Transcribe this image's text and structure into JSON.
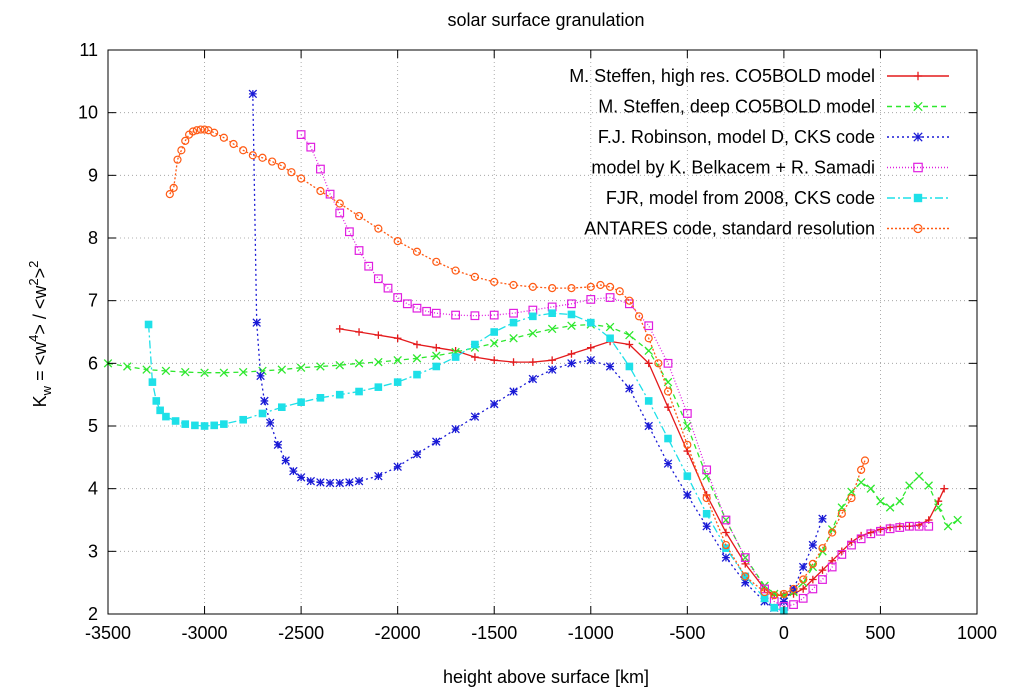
{
  "chart_data": {
    "type": "scatter",
    "title": "solar surface granulation",
    "xlabel": "height above surface [km]",
    "ylabel": {
      "base": "K",
      "sub": "w",
      "eq": " = <w",
      "sup1": "4",
      "mid": "> / <w",
      "sup2": "2",
      "mid2": ">",
      "sup3": "2"
    },
    "xlim": [
      -3500,
      1000
    ],
    "ylim": [
      2,
      11
    ],
    "xticks": [
      -3500,
      -3000,
      -2500,
      -2000,
      -1500,
      -1000,
      -500,
      0,
      500,
      1000
    ],
    "yticks": [
      2,
      3,
      4,
      5,
      6,
      7,
      8,
      9,
      10,
      11
    ],
    "xtick_labels": [
      "-3500",
      "-3000",
      "-2500",
      "-2000",
      "-1500",
      "-1000",
      "-500",
      "0",
      "500",
      "1000"
    ],
    "ytick_labels": [
      "2",
      "3",
      "4",
      "5",
      "6",
      "7",
      "8",
      "9",
      "10",
      "11"
    ],
    "grid": true,
    "legend_position": "top-right",
    "series": [
      {
        "name": "M. Steffen, high res. CO5BOLD model",
        "color": "#e41a1c",
        "marker": "plus",
        "dash": "",
        "x": [
          -2300,
          -2200,
          -2100,
          -2000,
          -1900,
          -1800,
          -1700,
          -1600,
          -1500,
          -1400,
          -1300,
          -1200,
          -1100,
          -1000,
          -900,
          -800,
          -700,
          -600,
          -500,
          -400,
          -300,
          -200,
          -100,
          -50,
          0,
          50,
          100,
          150,
          200,
          250,
          300,
          350,
          400,
          450,
          500,
          550,
          600,
          650,
          700,
          750,
          800,
          830
        ],
        "y": [
          6.55,
          6.5,
          6.45,
          6.4,
          6.3,
          6.25,
          6.2,
          6.1,
          6.05,
          6.02,
          6.02,
          6.05,
          6.15,
          6.25,
          6.35,
          6.3,
          6.0,
          5.3,
          4.6,
          3.9,
          3.3,
          2.8,
          2.4,
          2.3,
          2.3,
          2.32,
          2.4,
          2.55,
          2.7,
          2.85,
          3.0,
          3.15,
          3.25,
          3.3,
          3.35,
          3.38,
          3.4,
          3.4,
          3.42,
          3.5,
          3.8,
          4.0
        ]
      },
      {
        "name": "M. Steffen, deep CO5BOLD model",
        "color": "#2ee82e",
        "marker": "cross",
        "dash": "5,4",
        "x": [
          -3500,
          -3400,
          -3300,
          -3200,
          -3100,
          -3000,
          -2900,
          -2800,
          -2700,
          -2600,
          -2500,
          -2400,
          -2300,
          -2200,
          -2100,
          -2000,
          -1900,
          -1800,
          -1700,
          -1600,
          -1500,
          -1400,
          -1300,
          -1200,
          -1100,
          -1000,
          -900,
          -800,
          -700,
          -600,
          -500,
          -400,
          -300,
          -200,
          -100,
          -50,
          0,
          50,
          100,
          150,
          200,
          250,
          300,
          350,
          400,
          450,
          500,
          550,
          600,
          650,
          700,
          750,
          800,
          850,
          900
        ],
        "y": [
          6.0,
          5.95,
          5.9,
          5.88,
          5.86,
          5.85,
          5.85,
          5.86,
          5.88,
          5.9,
          5.93,
          5.95,
          5.97,
          6.0,
          6.02,
          6.05,
          6.08,
          6.12,
          6.18,
          6.25,
          6.32,
          6.4,
          6.48,
          6.55,
          6.6,
          6.62,
          6.58,
          6.45,
          6.2,
          5.7,
          5.0,
          4.2,
          3.5,
          2.9,
          2.45,
          2.32,
          2.3,
          2.35,
          2.5,
          2.75,
          3.0,
          3.35,
          3.7,
          3.95,
          4.1,
          4.0,
          3.8,
          3.7,
          3.8,
          4.05,
          4.2,
          4.05,
          3.7,
          3.4,
          3.5
        ]
      },
      {
        "name": "F.J. Robinson, model D, CKS code",
        "color": "#1a1ad6",
        "marker": "star",
        "dash": "2,3",
        "x": [
          -2750,
          -2730,
          -2710,
          -2690,
          -2660,
          -2620,
          -2580,
          -2540,
          -2500,
          -2450,
          -2400,
          -2350,
          -2300,
          -2250,
          -2200,
          -2100,
          -2000,
          -1900,
          -1800,
          -1700,
          -1600,
          -1500,
          -1400,
          -1300,
          -1200,
          -1100,
          -1000,
          -900,
          -800,
          -700,
          -600,
          -500,
          -400,
          -300,
          -200,
          -100,
          -50,
          0,
          50,
          100,
          150,
          200
        ],
        "y": [
          10.3,
          6.65,
          5.8,
          5.4,
          5.05,
          4.7,
          4.45,
          4.28,
          4.18,
          4.12,
          4.1,
          4.09,
          4.09,
          4.1,
          4.12,
          4.2,
          4.35,
          4.55,
          4.75,
          4.95,
          5.15,
          5.35,
          5.55,
          5.75,
          5.9,
          6.0,
          6.05,
          5.95,
          5.6,
          5.0,
          4.4,
          3.9,
          3.4,
          2.9,
          2.5,
          2.2,
          2.1,
          2.2,
          2.4,
          2.75,
          3.1,
          3.52
        ]
      },
      {
        "name": "model by K. Belkacem + R. Samadi",
        "color": "#e01ee0",
        "marker": "square",
        "dash": "1,2",
        "x": [
          -2500,
          -2450,
          -2400,
          -2350,
          -2300,
          -2250,
          -2200,
          -2150,
          -2100,
          -2050,
          -2000,
          -1950,
          -1900,
          -1850,
          -1800,
          -1700,
          -1600,
          -1500,
          -1400,
          -1300,
          -1200,
          -1100,
          -1000,
          -900,
          -800,
          -700,
          -600,
          -500,
          -400,
          -300,
          -200,
          -100,
          -50,
          0,
          50,
          100,
          150,
          200,
          250,
          300,
          350,
          400,
          450,
          500,
          550,
          600,
          650,
          700,
          750
        ],
        "y": [
          9.65,
          9.45,
          9.1,
          8.7,
          8.4,
          8.1,
          7.8,
          7.55,
          7.35,
          7.2,
          7.05,
          6.95,
          6.88,
          6.83,
          6.8,
          6.77,
          6.76,
          6.77,
          6.8,
          6.85,
          6.9,
          6.95,
          7.02,
          7.05,
          6.95,
          6.6,
          6.0,
          5.2,
          4.3,
          3.5,
          2.9,
          2.4,
          2.2,
          2.12,
          2.15,
          2.25,
          2.4,
          2.55,
          2.75,
          2.95,
          3.1,
          3.2,
          3.28,
          3.32,
          3.36,
          3.38,
          3.4,
          3.4,
          3.4
        ]
      },
      {
        "name": "FJR, model from 2008, CKS code",
        "color": "#1ee0e8",
        "marker": "filled-square",
        "dash": "8,3,2,3",
        "x": [
          -3290,
          -3270,
          -3250,
          -3230,
          -3200,
          -3150,
          -3100,
          -3050,
          -3000,
          -2950,
          -2900,
          -2800,
          -2700,
          -2600,
          -2500,
          -2400,
          -2300,
          -2200,
          -2100,
          -2000,
          -1900,
          -1800,
          -1700,
          -1600,
          -1500,
          -1400,
          -1300,
          -1200,
          -1100,
          -1000,
          -900,
          -800,
          -700,
          -600,
          -500,
          -400,
          -300,
          -200,
          -100,
          -50,
          0
        ],
        "y": [
          6.62,
          5.7,
          5.4,
          5.25,
          5.15,
          5.08,
          5.03,
          5.01,
          5.0,
          5.01,
          5.03,
          5.1,
          5.2,
          5.3,
          5.38,
          5.45,
          5.5,
          5.55,
          5.62,
          5.7,
          5.82,
          5.95,
          6.1,
          6.3,
          6.5,
          6.65,
          6.75,
          6.8,
          6.78,
          6.65,
          6.4,
          5.95,
          5.4,
          4.8,
          4.2,
          3.6,
          3.05,
          2.6,
          2.25,
          2.1,
          2.05
        ]
      },
      {
        "name": "ANTARES code, standard resolution",
        "color": "#ff5a14",
        "marker": "circle",
        "dash": "2,2",
        "x": [
          -3180,
          -3160,
          -3140,
          -3120,
          -3100,
          -3080,
          -3060,
          -3040,
          -3020,
          -3000,
          -2980,
          -2950,
          -2900,
          -2850,
          -2800,
          -2750,
          -2700,
          -2650,
          -2600,
          -2550,
          -2500,
          -2400,
          -2300,
          -2200,
          -2100,
          -2000,
          -1900,
          -1800,
          -1700,
          -1600,
          -1500,
          -1400,
          -1300,
          -1200,
          -1100,
          -1000,
          -950,
          -900,
          -850,
          -800,
          -750,
          -700,
          -650,
          -600,
          -500,
          -400,
          -300,
          -200,
          -100,
          -50,
          0,
          50,
          100,
          150,
          200,
          250,
          300,
          350,
          400,
          420
        ],
        "y": [
          8.7,
          8.8,
          9.25,
          9.4,
          9.55,
          9.65,
          9.7,
          9.72,
          9.73,
          9.73,
          9.72,
          9.68,
          9.6,
          9.5,
          9.4,
          9.32,
          9.28,
          9.22,
          9.15,
          9.05,
          8.95,
          8.75,
          8.55,
          8.35,
          8.15,
          7.95,
          7.78,
          7.62,
          7.48,
          7.38,
          7.3,
          7.25,
          7.22,
          7.2,
          7.2,
          7.22,
          7.25,
          7.22,
          7.15,
          7.0,
          6.75,
          6.4,
          6.0,
          5.55,
          4.7,
          3.85,
          3.1,
          2.6,
          2.35,
          2.3,
          2.32,
          2.4,
          2.55,
          2.8,
          3.05,
          3.3,
          3.6,
          3.85,
          4.3,
          4.45
        ]
      }
    ]
  }
}
